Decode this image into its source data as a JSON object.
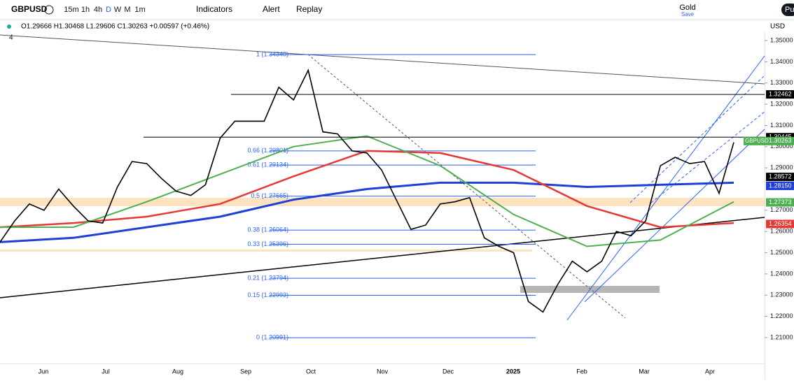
{
  "toolbar": {
    "symbol": "GBPUSD",
    "intervals": [
      "15m",
      "1h",
      "4h",
      "D",
      "W",
      "M",
      "1m"
    ],
    "indicators": "Indicators",
    "alert": "Alert",
    "replay": "Replay",
    "layout_name": "Gold",
    "save": "Save",
    "publish": "Pu"
  },
  "legend": {
    "ohlc": "O1.29666 H1.30468 L1.29606 C1.30263 +0.00597 (+0.46%)",
    "indicator_count": "4"
  },
  "price_axis": {
    "currency": "USD",
    "ylim": [
      1.1978,
      1.3543
    ],
    "ticks": [
      {
        "value": 1.35,
        "label": "1.35000"
      },
      {
        "value": 1.34,
        "label": "1.34000"
      },
      {
        "value": 1.33,
        "label": "1.33000"
      },
      {
        "value": 1.32,
        "label": "1.32000"
      },
      {
        "value": 1.31,
        "label": "1.31000"
      },
      {
        "value": 1.3,
        "label": "1.30000"
      },
      {
        "value": 1.29,
        "label": "1.29000"
      },
      {
        "value": 1.27,
        "label": "1.27000"
      },
      {
        "value": 1.26,
        "label": "1.26000"
      },
      {
        "value": 1.25,
        "label": "1.25000"
      },
      {
        "value": 1.24,
        "label": "1.24000"
      },
      {
        "value": 1.23,
        "label": "1.23000"
      },
      {
        "value": 1.22,
        "label": "1.22000"
      },
      {
        "value": 1.21,
        "label": "1.21000"
      }
    ],
    "badges": [
      {
        "value": 1.32462,
        "label": "1.32462",
        "color": "#000000"
      },
      {
        "value": 1.30445,
        "label": "1.30445",
        "color": "#000000"
      },
      {
        "value": 1.30263,
        "label": "1.30263",
        "color": "#4caf50",
        "tag": "GBPUSD"
      },
      {
        "value": 1.28572,
        "label": "1.28572",
        "color": "#000000"
      },
      {
        "value": 1.2815,
        "label": "1.28150",
        "color": "#1e40d8"
      },
      {
        "value": 1.27373,
        "label": "1.27373",
        "color": "#4caf50"
      },
      {
        "value": 1.26354,
        "label": "1.26354",
        "color": "#e53935"
      }
    ]
  },
  "time_axis": {
    "labels": [
      "Jun",
      "Jul",
      "Aug",
      "Sep",
      "Oct",
      "Nov",
      "Dec",
      "2025",
      "Feb",
      "Mar",
      "Apr"
    ]
  },
  "price_series": {
    "closes": [
      1.255,
      1.265,
      1.273,
      1.27,
      1.28,
      1.272,
      1.265,
      1.264,
      1.281,
      1.293,
      1.292,
      1.285,
      1.279,
      1.277,
      1.282,
      1.304,
      1.312,
      1.312,
      1.312,
      1.328,
      1.322,
      1.336,
      1.307,
      1.306,
      1.298,
      1.297,
      1.289,
      1.275,
      1.261,
      1.263,
      1.273,
      1.274,
      1.276,
      1.257,
      1.253,
      1.25,
      1.227,
      1.222,
      1.235,
      1.246,
      1.241,
      1.246,
      1.26,
      1.258,
      1.265,
      1.291,
      1.295,
      1.292,
      1.293,
      1.278,
      1.302
    ],
    "ma_green": [
      1.262,
      1.262,
      1.274,
      1.287,
      1.3,
      1.305,
      1.291,
      1.268,
      1.253,
      1.256,
      1.274
    ],
    "ma_red": [
      1.262,
      1.264,
      1.267,
      1.273,
      1.286,
      1.298,
      1.297,
      1.289,
      1.272,
      1.262,
      1.264
    ],
    "ma_blue": [
      1.255,
      1.257,
      1.262,
      1.267,
      1.275,
      1.28,
      1.283,
      1.283,
      1.281,
      1.282,
      1.283
    ]
  },
  "fib_levels": [
    {
      "label": "1 (1.34340)",
      "value": 1.3434
    },
    {
      "label": "0.66 (1.29801)",
      "value": 1.29801
    },
    {
      "label": "0.61 (1.29134)",
      "value": 1.29134
    },
    {
      "label": "0.5 (1.27665)",
      "value": 1.27665
    },
    {
      "label": "0.38 (1.26064)",
      "value": 1.26064
    },
    {
      "label": "0.33 (1.25396)",
      "value": 1.25396
    },
    {
      "label": "0.21 (1.23794)",
      "value": 1.23794
    },
    {
      "label": "0.15 (1.22993)",
      "value": 1.22993
    },
    {
      "label": "0 (1.20991)",
      "value": 1.20991
    }
  ]
}
